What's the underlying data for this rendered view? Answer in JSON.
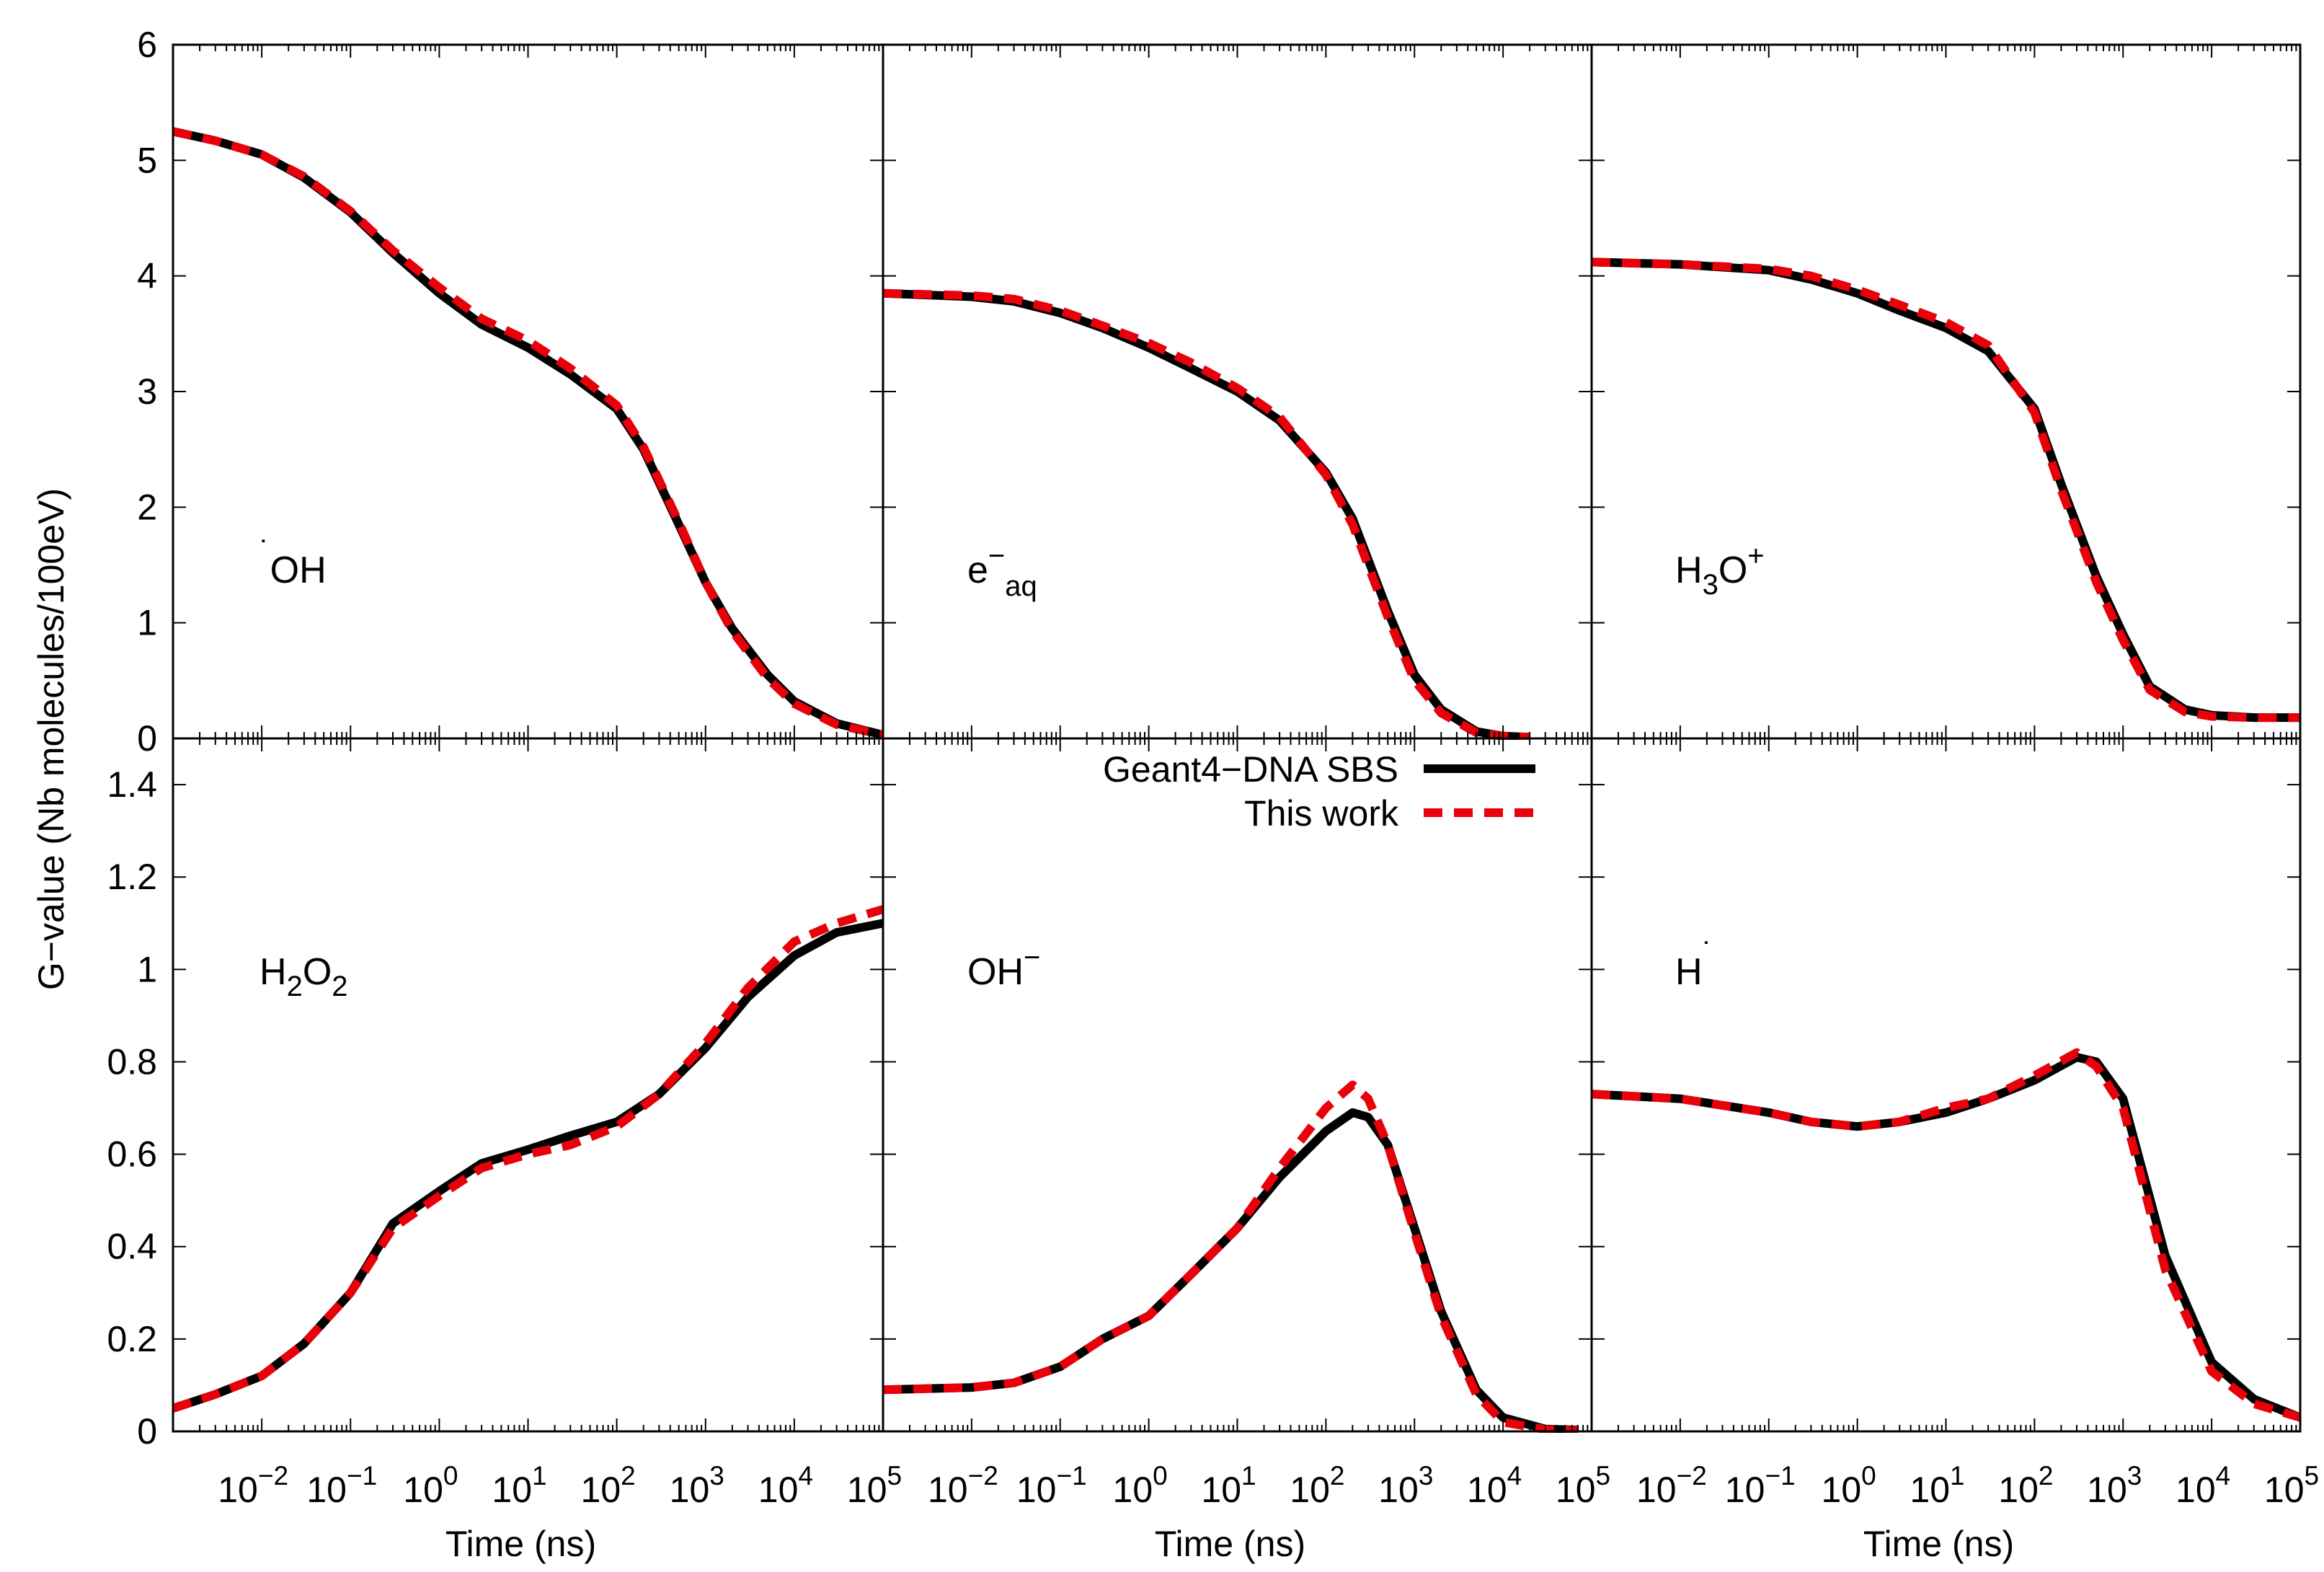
{
  "chart_data": {
    "type": "line",
    "ylabel": "G−value (Nb molecules/100eV)",
    "xlabel": "Time (ns)",
    "x_scale": "log",
    "xlim": [
      0.001,
      100000
    ],
    "x_ticks": [
      {
        "value": 0.01,
        "base": "10",
        "exp": "−2"
      },
      {
        "value": 0.1,
        "base": "10",
        "exp": "−1"
      },
      {
        "value": 1,
        "base": "10",
        "exp": "0"
      },
      {
        "value": 10,
        "base": "10",
        "exp": "1"
      },
      {
        "value": 100,
        "base": "10",
        "exp": "2"
      },
      {
        "value": 1000,
        "base": "10",
        "exp": "3"
      },
      {
        "value": 10000,
        "base": "10",
        "exp": "4"
      },
      {
        "value": 100000,
        "base": "10",
        "exp": "5"
      }
    ],
    "top_row": {
      "ylim": [
        0,
        6
      ],
      "y_ticks": [
        {
          "value": 0,
          "label": "0"
        },
        {
          "value": 1,
          "label": "1"
        },
        {
          "value": 2,
          "label": "2"
        },
        {
          "value": 3,
          "label": "3"
        },
        {
          "value": 4,
          "label": "4"
        },
        {
          "value": 5,
          "label": "5"
        },
        {
          "value": 6,
          "label": "6"
        }
      ]
    },
    "bottom_row": {
      "ylim": [
        0,
        1.5
      ],
      "y_ticks": [
        {
          "value": 0,
          "label": "0"
        },
        {
          "value": 0.2,
          "label": "0.2"
        },
        {
          "value": 0.4,
          "label": "0.4"
        },
        {
          "value": 0.6,
          "label": "0.6"
        },
        {
          "value": 0.8,
          "label": "0.8"
        },
        {
          "value": 1,
          "label": "1"
        },
        {
          "value": 1.2,
          "label": "1.2"
        },
        {
          "value": 1.4,
          "label": "1.4"
        }
      ]
    },
    "legend": {
      "placement": "top-right of bottom-middle panel",
      "entries": [
        {
          "name": "Geant4−DNA SBS",
          "color": "#000000",
          "style": "solid"
        },
        {
          "name": "This work",
          "color": "#e8000b",
          "style": "dashed"
        }
      ]
    },
    "series_colors": {
      "sbs": "#000000",
      "work": "#e8000b"
    },
    "panels": [
      {
        "name": "OH",
        "dot": "˙",
        "base": "OH",
        "sub": "",
        "sup": "",
        "row": 0,
        "col": 0,
        "x": [
          0.001,
          0.003,
          0.01,
          0.03,
          0.1,
          0.3,
          1,
          3,
          10,
          30,
          100,
          200,
          500,
          1000,
          2000,
          5000,
          10000,
          30000,
          100000
        ],
        "sbs": [
          5.25,
          5.17,
          5.05,
          4.85,
          4.55,
          4.2,
          3.85,
          3.58,
          3.38,
          3.15,
          2.85,
          2.5,
          1.85,
          1.35,
          0.95,
          0.55,
          0.32,
          0.13,
          0.03
        ],
        "work": [
          5.25,
          5.17,
          5.05,
          4.86,
          4.56,
          4.22,
          3.9,
          3.63,
          3.44,
          3.2,
          2.88,
          2.52,
          1.87,
          1.35,
          0.93,
          0.52,
          0.3,
          0.12,
          0.03
        ]
      },
      {
        "name": "e-aq",
        "dot": "",
        "base": "e",
        "sub": "aq",
        "sup": "−",
        "row": 0,
        "col": 1,
        "x": [
          0.001,
          0.01,
          0.03,
          0.1,
          0.3,
          1,
          3,
          10,
          30,
          100,
          200,
          500,
          1000,
          2000,
          5000,
          10000,
          20000
        ],
        "sbs": [
          3.85,
          3.82,
          3.78,
          3.68,
          3.55,
          3.38,
          3.2,
          3.0,
          2.75,
          2.3,
          1.9,
          1.1,
          0.55,
          0.25,
          0.06,
          0.02,
          0.01
        ],
        "work": [
          3.85,
          3.83,
          3.8,
          3.7,
          3.57,
          3.42,
          3.25,
          3.03,
          2.78,
          2.28,
          1.85,
          1.05,
          0.5,
          0.22,
          0.05,
          0.02,
          0.01
        ]
      },
      {
        "name": "H3O+",
        "dot": "",
        "base": "H",
        "sub": "3",
        "mid": "O",
        "sup": "+",
        "row": 0,
        "col": 2,
        "x": [
          0.001,
          0.01,
          0.1,
          0.3,
          1,
          3,
          10,
          30,
          100,
          200,
          500,
          1000,
          2000,
          5000,
          10000,
          30000,
          100000
        ],
        "sbs": [
          4.12,
          4.1,
          4.05,
          3.97,
          3.85,
          3.7,
          3.55,
          3.35,
          2.85,
          2.2,
          1.4,
          0.9,
          0.45,
          0.25,
          0.2,
          0.18,
          0.18
        ],
        "work": [
          4.12,
          4.1,
          4.06,
          4.0,
          3.88,
          3.75,
          3.6,
          3.4,
          2.82,
          2.15,
          1.35,
          0.85,
          0.42,
          0.23,
          0.19,
          0.18,
          0.18
        ]
      },
      {
        "name": "H2O2",
        "dot": "",
        "base": "H",
        "sub": "2",
        "mid": "O",
        "sub2": "2",
        "sup": "",
        "row": 1,
        "col": 0,
        "x": [
          0.001,
          0.003,
          0.01,
          0.03,
          0.1,
          0.3,
          1,
          3,
          10,
          30,
          100,
          300,
          1000,
          3000,
          10000,
          30000,
          100000
        ],
        "sbs": [
          0.05,
          0.08,
          0.12,
          0.19,
          0.3,
          0.45,
          0.52,
          0.58,
          0.61,
          0.64,
          0.67,
          0.73,
          0.83,
          0.94,
          1.03,
          1.08,
          1.1
        ],
        "work": [
          0.05,
          0.08,
          0.12,
          0.19,
          0.3,
          0.44,
          0.51,
          0.57,
          0.6,
          0.62,
          0.66,
          0.73,
          0.84,
          0.96,
          1.06,
          1.1,
          1.13
        ]
      },
      {
        "name": "OH-",
        "dot": "",
        "base": "OH",
        "sub": "",
        "sup": "−",
        "row": 1,
        "col": 1,
        "x": [
          0.001,
          0.01,
          0.03,
          0.1,
          0.3,
          1,
          3,
          10,
          30,
          100,
          200,
          300,
          500,
          1000,
          2000,
          5000,
          10000,
          30000,
          70000
        ],
        "sbs": [
          0.09,
          0.095,
          0.105,
          0.14,
          0.2,
          0.25,
          0.34,
          0.44,
          0.55,
          0.65,
          0.69,
          0.68,
          0.62,
          0.44,
          0.26,
          0.09,
          0.03,
          0.005,
          0.003
        ],
        "work": [
          0.09,
          0.095,
          0.105,
          0.14,
          0.2,
          0.25,
          0.34,
          0.44,
          0.57,
          0.7,
          0.75,
          0.72,
          0.62,
          0.43,
          0.25,
          0.08,
          0.02,
          0.004,
          0.002
        ]
      },
      {
        "name": "H",
        "dot": "˙",
        "base": "H",
        "sub": "",
        "sup": "",
        "row": 1,
        "col": 2,
        "x": [
          0.001,
          0.01,
          0.1,
          0.3,
          1,
          3,
          10,
          30,
          100,
          300,
          500,
          1000,
          3000,
          10000,
          30000,
          100000
        ],
        "sbs": [
          0.73,
          0.72,
          0.69,
          0.67,
          0.66,
          0.67,
          0.69,
          0.72,
          0.76,
          0.81,
          0.8,
          0.72,
          0.38,
          0.15,
          0.07,
          0.03
        ],
        "work": [
          0.73,
          0.72,
          0.69,
          0.67,
          0.66,
          0.67,
          0.7,
          0.72,
          0.77,
          0.82,
          0.79,
          0.7,
          0.35,
          0.13,
          0.06,
          0.03
        ]
      }
    ]
  }
}
